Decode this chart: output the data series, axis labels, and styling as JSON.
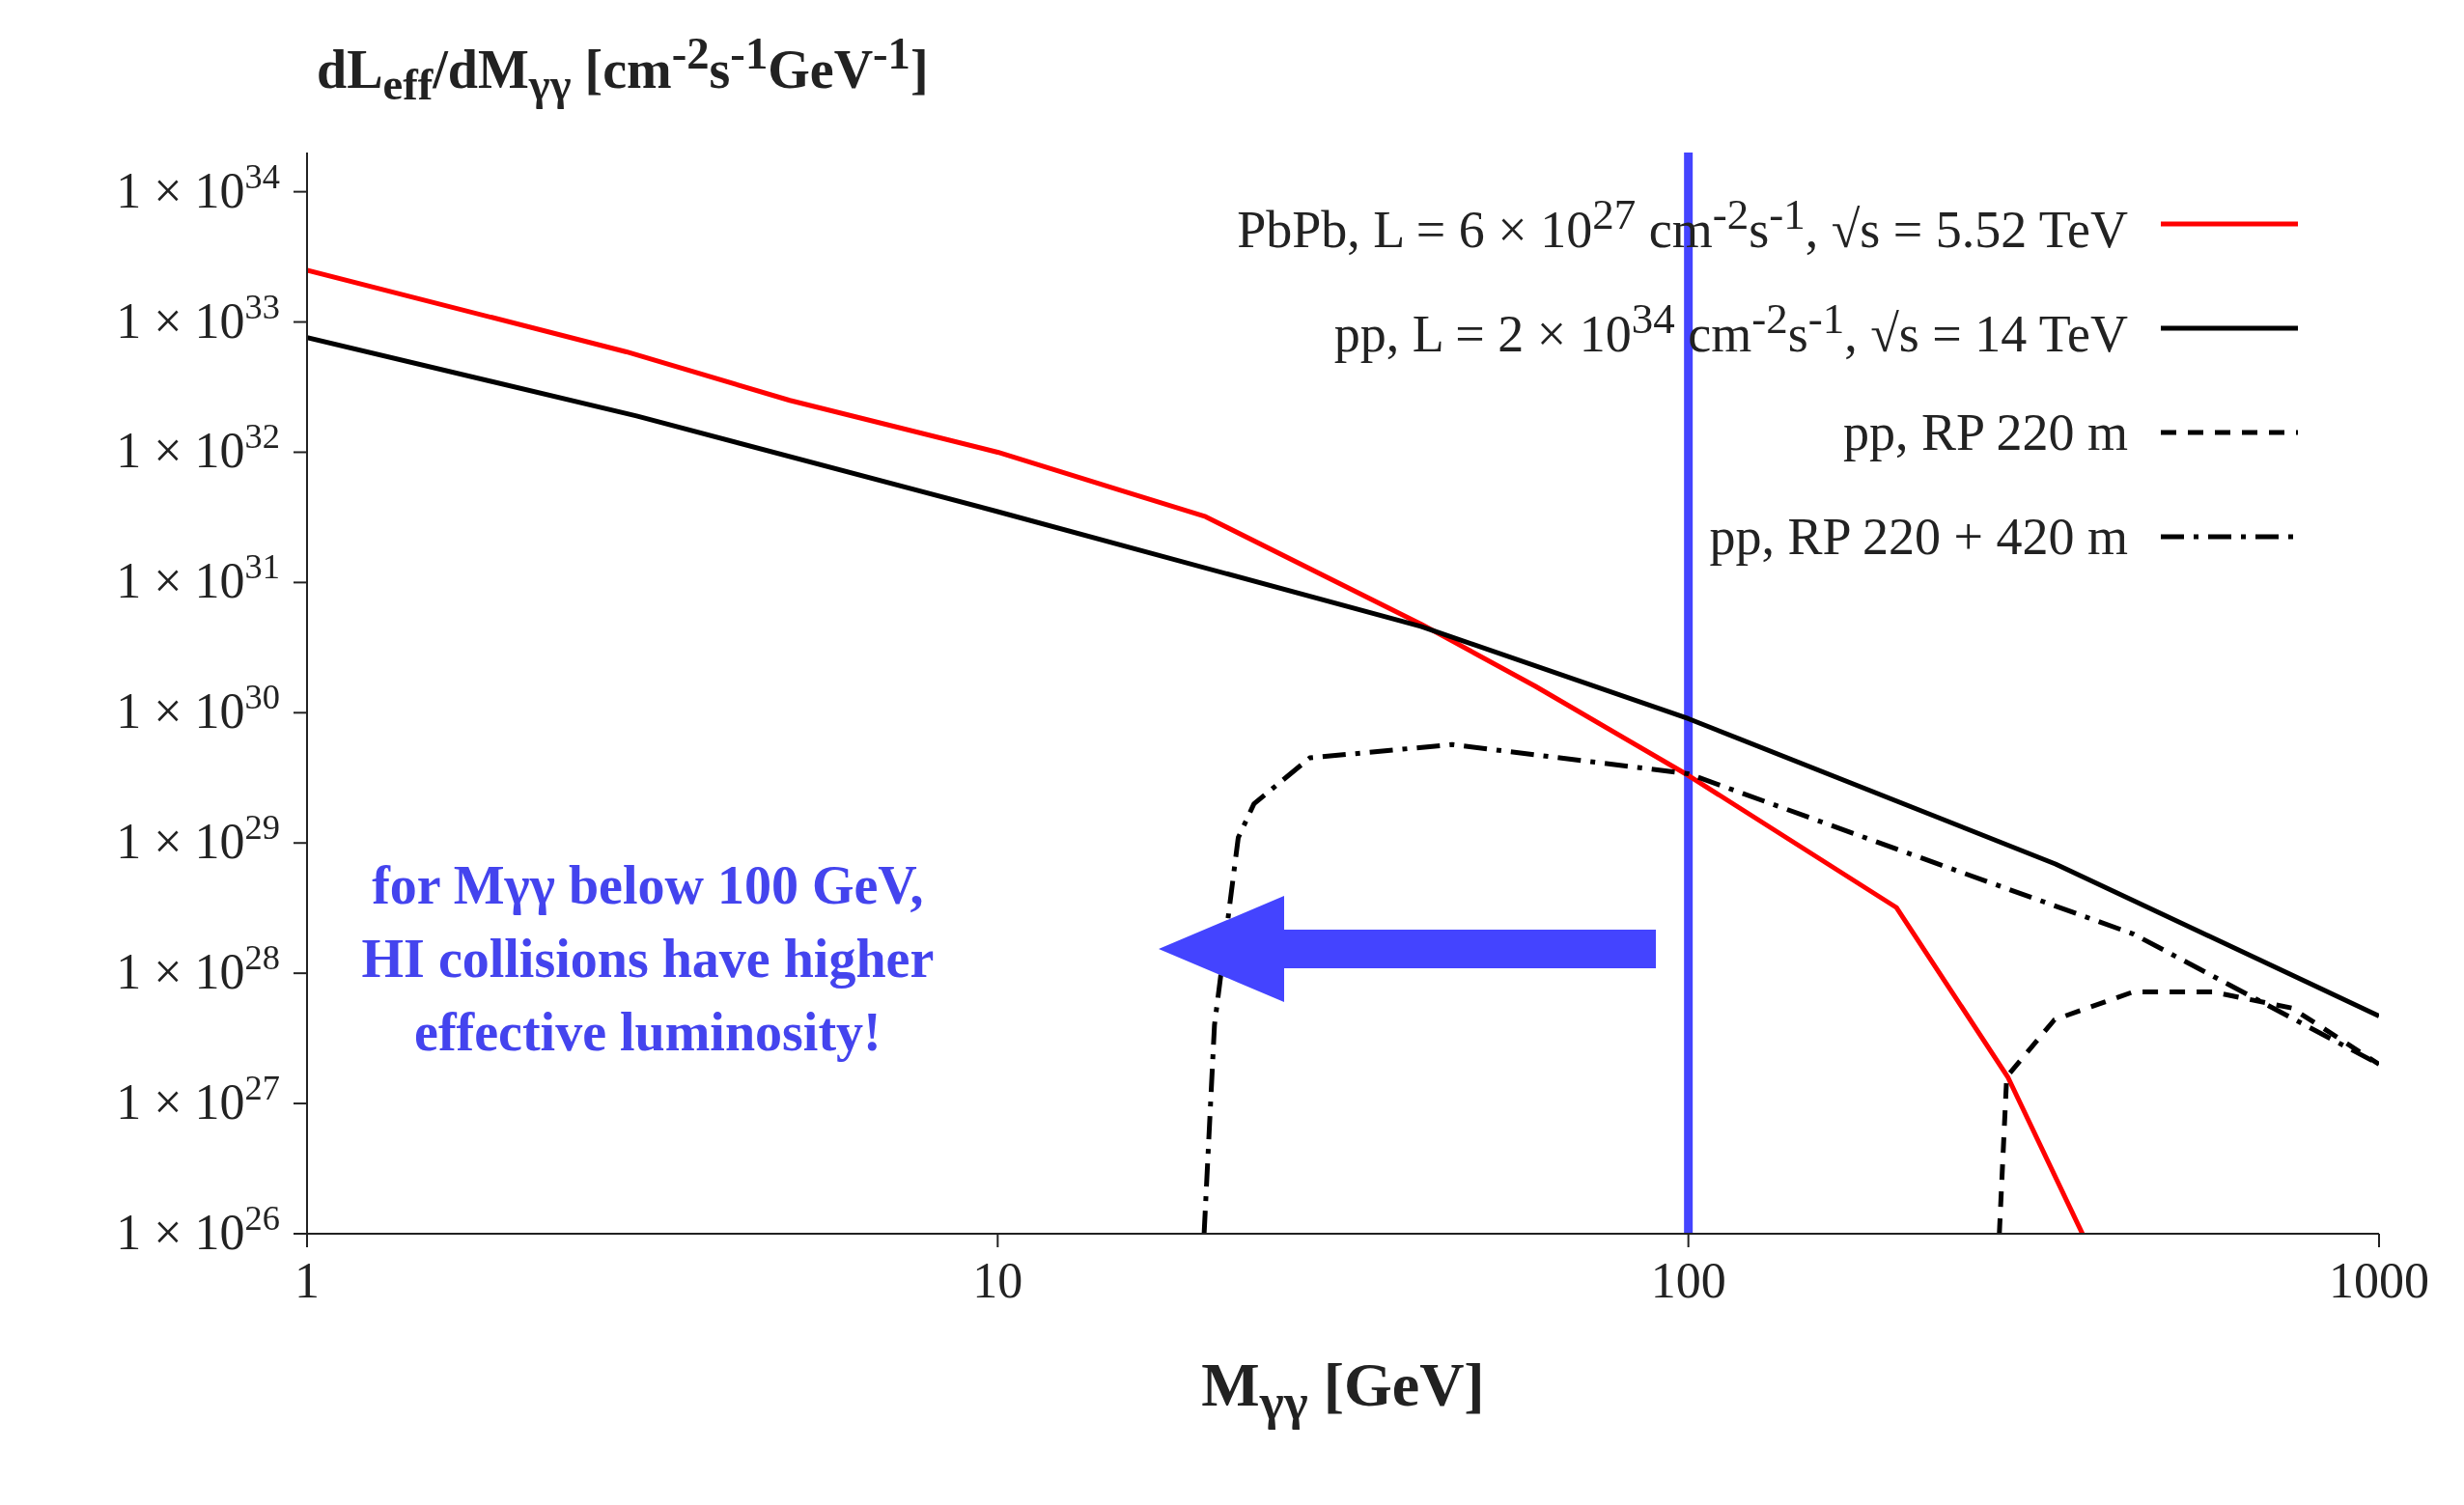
{
  "chart_data": {
    "type": "line",
    "xlabel": "M$_{γγ}$ [GeV]",
    "ylabel": "dL$_{eff}$/dM$_{γγ}$ [cm$^{-2}$s$^{-1}$GeV$^{-1}$]",
    "log": "xy",
    "xlim": [
      1,
      1000
    ],
    "xticks": [
      1,
      10,
      100,
      1000
    ],
    "ylim": [
      1e+26,
      2e+34
    ],
    "yticks": [
      {
        "value": 1e+26,
        "label": "1 × 10$^{26}$"
      },
      {
        "value": 1e+27,
        "label": "1 × 10$^{27}$"
      },
      {
        "value": 1e+28,
        "label": "1 × 10$^{28}$"
      },
      {
        "value": 1e+29,
        "label": "1 × 10$^{29}$"
      },
      {
        "value": 1e+30,
        "label": "1 × 10$^{30}$"
      },
      {
        "value": 1e+31,
        "label": "1 × 10$^{31}$"
      },
      {
        "value": 1e+32,
        "label": "1 × 10$^{32}$"
      },
      {
        "value": 1e+33,
        "label": "1 × 10$^{33}$"
      },
      {
        "value": 1e+34,
        "label": "1 × 10$^{34}$"
      }
    ],
    "legend": "top right",
    "marker": "none",
    "series": [
      {
        "name": "PbPb, L = 6 × 10$^{27}$ cm$^{-2}$s$^{-1}$, √s = 5.52 TeV",
        "color": "#ff0000",
        "line_style": "solid",
        "x": [
          1,
          2.9,
          5,
          10,
          20,
          41,
          60,
          100,
          200,
          290,
          372
        ],
        "values": [
          2.5e+33,
          5.9e+32,
          2.5e+32,
          1e+32,
          3.2e+31,
          4.8e+30,
          1.6e+30,
          3.3e+29,
          3.2e+28,
          1.6e+27,
          1e+26
        ]
      },
      {
        "name": "pp, L = 2 × 10$^{34}$ cm$^{-2}$s$^{-1}$, √s = 14 TeV",
        "color": "#000000",
        "line_style": "solid",
        "x": [
          1,
          3,
          10,
          41,
          100,
          340,
          1000
        ],
        "values": [
          7.6e+32,
          1.9e+32,
          3.5e+31,
          4.6e+30,
          9e+29,
          6.9e+28,
          4.7e+27
        ]
      },
      {
        "name": "pp, RP 220 m",
        "color": "#000000",
        "line_style": "dashed",
        "x": [
          282,
          289,
          339,
          441,
          574,
          748,
          1000
        ],
        "values": [
          1e+26,
          1.6e+27,
          4.4e+27,
          7.2e+27,
          7.2e+27,
          5.4e+27,
          2e+27
        ]
      },
      {
        "name": "pp, RP 220 + 420 m",
        "color": "#000000",
        "line_style": "dashdot",
        "x": [
          19.9,
          20.6,
          22.3,
          23.5,
          28.3,
          45.5,
          100,
          200,
          441,
          1000
        ],
        "values": [
          1e+26,
          4e+27,
          1.1e+29,
          2e+29,
          4.5e+29,
          5.7e+29,
          3.4e+29,
          9e+28,
          2e+28,
          2e+27
        ]
      }
    ],
    "ref_lines": [
      {
        "axis": "x",
        "value": 100,
        "color": "#4444ff"
      }
    ],
    "annotations": [
      "for Mγγ below 100 GeV, HI collisions have higher effective luminosity!"
    ]
  }
}
